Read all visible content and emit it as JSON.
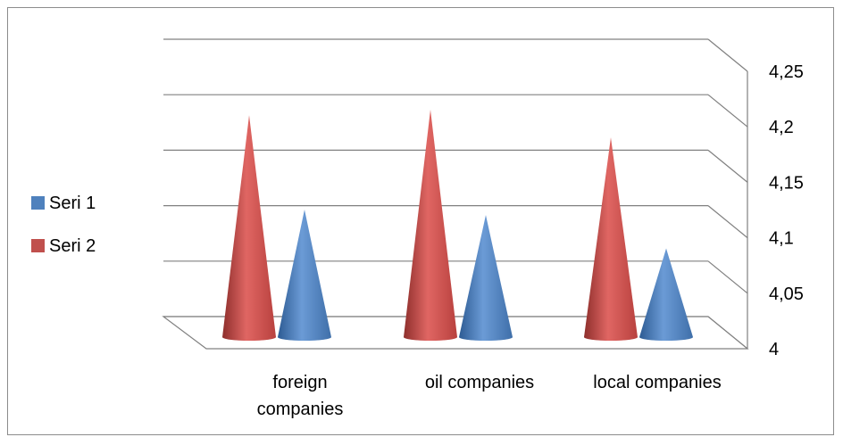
{
  "chart_data": {
    "type": "bar",
    "shape": "cone-3d",
    "categories": [
      "foreign companies",
      "oil companies",
      "local companies"
    ],
    "category_lines": [
      [
        "foreign",
        "companies"
      ],
      [
        "oil companies"
      ],
      [
        "local companies"
      ]
    ],
    "series": [
      {
        "name": "Seri 1",
        "color": "#4f81bd",
        "values": [
          4.115,
          4.11,
          4.08
        ]
      },
      {
        "name": "Seri 2",
        "color": "#c0504d",
        "values": [
          4.2,
          4.205,
          4.18
        ]
      }
    ],
    "ylim": [
      4,
      4.25
    ],
    "y_ticks": [
      "4",
      "4,05",
      "4,1",
      "4,15",
      "4,2",
      "4,25"
    ],
    "y_axis_side": "right",
    "grid": true,
    "legend": "left"
  }
}
